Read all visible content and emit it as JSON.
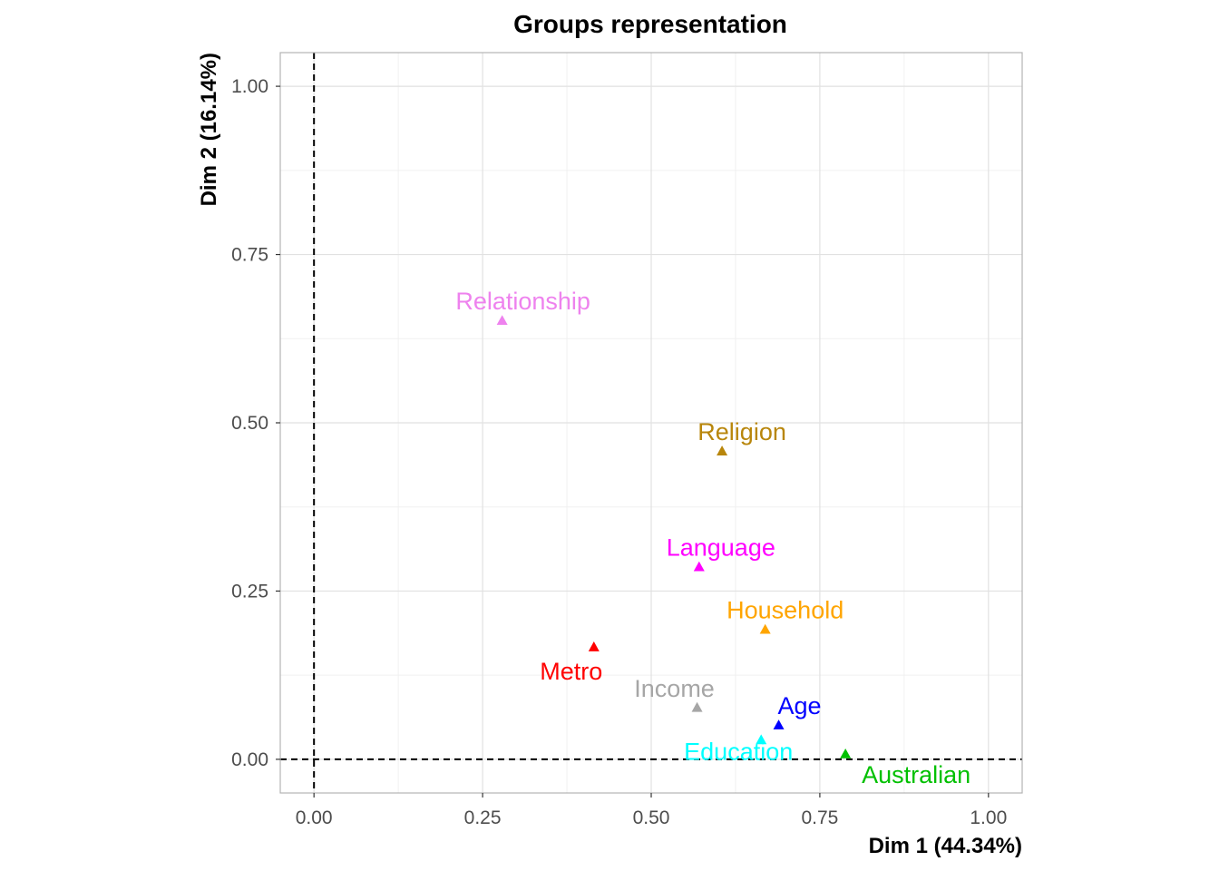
{
  "chart_data": {
    "type": "scatter",
    "title": "Groups representation",
    "xlabel": "Dim 1 (44.34%)",
    "ylabel": "Dim 2 (16.14%)",
    "xlim": [
      -0.05,
      1.05
    ],
    "ylim": [
      -0.05,
      1.05
    ],
    "x_ticks": [
      "0.00",
      "0.25",
      "0.50",
      "0.75",
      "1.00"
    ],
    "y_ticks": [
      "0.00",
      "0.25",
      "0.50",
      "0.75",
      "1.00"
    ],
    "grid": true,
    "reference_lines": {
      "x": 0,
      "y": 0,
      "style": "dashed"
    },
    "marker": "triangle",
    "points": [
      {
        "label": "Relationship",
        "x": 0.279,
        "y": 0.652,
        "color": "#EE82EE"
      },
      {
        "label": "Religion",
        "x": 0.605,
        "y": 0.458,
        "color": "#B8860B"
      },
      {
        "label": "Language",
        "x": 0.571,
        "y": 0.286,
        "color": "#FF00FF"
      },
      {
        "label": "Household",
        "x": 0.669,
        "y": 0.193,
        "color": "#FFA500"
      },
      {
        "label": "Metro",
        "x": 0.415,
        "y": 0.167,
        "color": "#FF0000"
      },
      {
        "label": "Income",
        "x": 0.568,
        "y": 0.077,
        "color": "#A6A6A6"
      },
      {
        "label": "Age",
        "x": 0.689,
        "y": 0.051,
        "color": "#0000FF"
      },
      {
        "label": "Education",
        "x": 0.663,
        "y": 0.029,
        "color": "#00FFFF"
      },
      {
        "label": "Australian",
        "x": 0.788,
        "y": 0.008,
        "color": "#00C000"
      }
    ]
  }
}
